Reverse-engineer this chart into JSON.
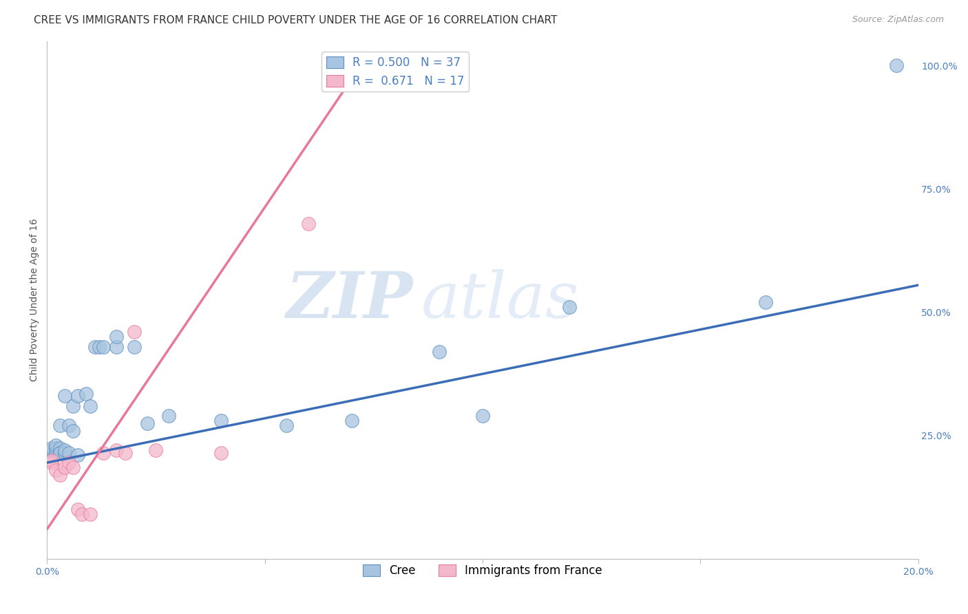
{
  "title": "CREE VS IMMIGRANTS FROM FRANCE CHILD POVERTY UNDER THE AGE OF 16 CORRELATION CHART",
  "source": "Source: ZipAtlas.com",
  "ylabel": "Child Poverty Under the Age of 16",
  "xlim": [
    0.0,
    0.2
  ],
  "ylim": [
    0.0,
    1.05
  ],
  "xticks": [
    0.0,
    0.05,
    0.1,
    0.15,
    0.2
  ],
  "xtick_labels": [
    "0.0%",
    "",
    "",
    "",
    "20.0%"
  ],
  "yticks_right": [
    0.25,
    0.5,
    0.75,
    1.0
  ],
  "ytick_right_labels": [
    "25.0%",
    "50.0%",
    "75.0%",
    "100.0%"
  ],
  "cree_R": 0.5,
  "cree_N": 37,
  "france_R": 0.671,
  "france_N": 17,
  "cree_color": "#a8c4e0",
  "france_color": "#f4b8cc",
  "cree_edge_color": "#5a8fc0",
  "france_edge_color": "#e87a9a",
  "cree_line_color": "#3a6db5",
  "france_line_color": "#e8789a",
  "watermark_zip_color": "#b8cfe8",
  "watermark_atlas_color": "#c8ddf0",
  "grid_color": "#d8d8d8",
  "background_color": "#ffffff",
  "title_fontsize": 11,
  "axis_label_fontsize": 10,
  "tick_fontsize": 10,
  "legend_fontsize": 12,
  "cree_x": [
    0.001,
    0.001,
    0.001,
    0.002,
    0.002,
    0.002,
    0.003,
    0.003,
    0.003,
    0.003,
    0.004,
    0.004,
    0.004,
    0.005,
    0.005,
    0.006,
    0.006,
    0.007,
    0.007,
    0.009,
    0.01,
    0.011,
    0.012,
    0.013,
    0.016,
    0.016,
    0.02,
    0.023,
    0.028,
    0.04,
    0.055,
    0.07,
    0.09,
    0.1,
    0.12,
    0.165,
    0.195
  ],
  "cree_y": [
    0.215,
    0.22,
    0.225,
    0.215,
    0.225,
    0.23,
    0.215,
    0.225,
    0.27,
    0.215,
    0.215,
    0.22,
    0.33,
    0.215,
    0.27,
    0.26,
    0.31,
    0.33,
    0.21,
    0.335,
    0.31,
    0.43,
    0.43,
    0.43,
    0.43,
    0.45,
    0.43,
    0.275,
    0.29,
    0.28,
    0.27,
    0.28,
    0.42,
    0.29,
    0.51,
    0.52,
    1.0
  ],
  "france_x": [
    0.001,
    0.001,
    0.002,
    0.003,
    0.004,
    0.005,
    0.006,
    0.007,
    0.008,
    0.01,
    0.013,
    0.016,
    0.018,
    0.02,
    0.025,
    0.04,
    0.06
  ],
  "france_y": [
    0.195,
    0.2,
    0.18,
    0.17,
    0.185,
    0.195,
    0.185,
    0.1,
    0.09,
    0.09,
    0.215,
    0.22,
    0.215,
    0.46,
    0.22,
    0.215,
    0.68
  ],
  "cree_line_x": [
    0.0,
    0.2
  ],
  "cree_line_y": [
    0.195,
    0.555
  ],
  "france_line_x": [
    0.0,
    0.072
  ],
  "france_line_y": [
    0.06,
    1.0
  ],
  "dot_size": 200
}
